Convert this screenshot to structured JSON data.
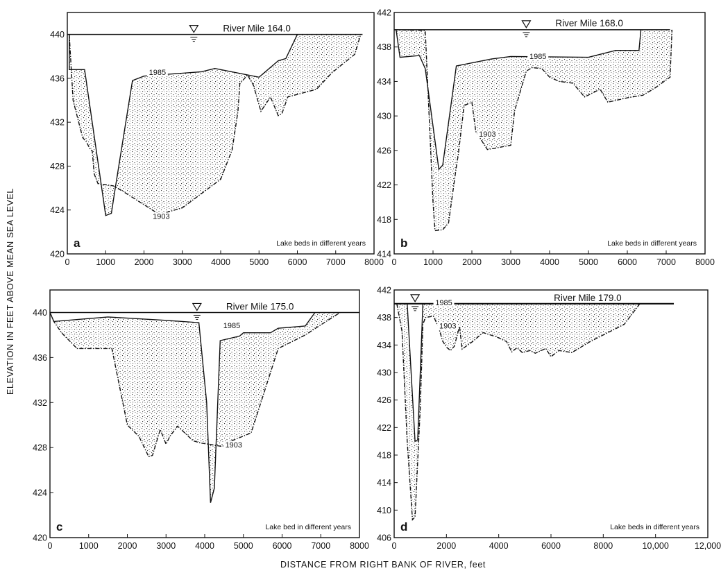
{
  "figure": {
    "y_axis_title": "ELEVATION IN FEET ABOVE MEAN SEA LEVEL",
    "x_axis_title": "DISTANCE FROM RIGHT BANK OF RIVER, feet"
  },
  "chart_data": [
    {
      "type": "area",
      "panel_label": "a",
      "title": "River Mile 164.0",
      "annotation": "Lake beds in different years",
      "xlim": [
        0,
        8000
      ],
      "ylim": [
        420,
        442
      ],
      "xticks": [
        "0",
        "1000",
        "2000",
        "3000",
        "4000",
        "5000",
        "6000",
        "7000",
        "8000"
      ],
      "yticks": [
        "420",
        "424",
        "428",
        "432",
        "436",
        "440"
      ],
      "water_surface": {
        "elevation": 440,
        "x_start": 0,
        "x_end": 7700,
        "symbol_x": 3300
      },
      "series": [
        {
          "name": "1985",
          "label_at": [
            2350,
            436.3
          ],
          "points": [
            [
              50,
              440
            ],
            [
              50,
              436.8
            ],
            [
              450,
              436.8
            ],
            [
              1000,
              423.5
            ],
            [
              1150,
              423.7
            ],
            [
              1250,
              426
            ],
            [
              1700,
              435.8
            ],
            [
              2000,
              436.2
            ],
            [
              3500,
              436.6
            ],
            [
              3850,
              436.9
            ],
            [
              5000,
              436.1
            ],
            [
              5500,
              437.6
            ],
            [
              5700,
              437.8
            ],
            [
              6000,
              440
            ]
          ]
        },
        {
          "name": "1903",
          "label_at": [
            2450,
            423.2
          ],
          "points": [
            [
              50,
              440
            ],
            [
              150,
              434
            ],
            [
              400,
              430.6
            ],
            [
              500,
              430.2
            ],
            [
              600,
              429.5
            ],
            [
              650,
              429.4
            ],
            [
              700,
              427.3
            ],
            [
              800,
              426.4
            ],
            [
              1200,
              426.2
            ],
            [
              1450,
              425.7
            ],
            [
              2400,
              423.6
            ],
            [
              3000,
              424.2
            ],
            [
              4000,
              426.8
            ],
            [
              4300,
              429.5
            ],
            [
              4450,
              433
            ],
            [
              4500,
              435.5
            ],
            [
              4700,
              436.3
            ],
            [
              4850,
              435.4
            ],
            [
              5050,
              433
            ],
            [
              5300,
              434.3
            ],
            [
              5500,
              432.6
            ],
            [
              5600,
              432.8
            ],
            [
              5750,
              434.3
            ],
            [
              6500,
              435
            ],
            [
              6900,
              436.5
            ],
            [
              7500,
              438.2
            ],
            [
              7650,
              440
            ]
          ]
        }
      ]
    },
    {
      "type": "area",
      "panel_label": "b",
      "title": "River Mile 168.0",
      "annotation": "Lake beds in different years",
      "xlim": [
        0,
        8000
      ],
      "ylim": [
        414,
        442
      ],
      "xticks": [
        "0",
        "1000",
        "2000",
        "3000",
        "4000",
        "5000",
        "6000",
        "7000",
        "8000"
      ],
      "yticks": [
        "414",
        "418",
        "422",
        "426",
        "430",
        "434",
        "438",
        "442"
      ],
      "water_surface": {
        "elevation": 440,
        "x_start": 0,
        "x_end": 7100,
        "symbol_x": 3400
      },
      "series": [
        {
          "name": "1985",
          "label_at": [
            3700,
            436.6
          ],
          "points": [
            [
              50,
              440
            ],
            [
              150,
              436.8
            ],
            [
              650,
              437
            ],
            [
              800,
              435.5
            ],
            [
              1150,
              423.8
            ],
            [
              1250,
              424.3
            ],
            [
              1600,
              435.8
            ],
            [
              2500,
              436.6
            ],
            [
              3000,
              436.9
            ],
            [
              5000,
              436.8
            ],
            [
              5700,
              437.6
            ],
            [
              6300,
              437.6
            ],
            [
              6350,
              440
            ]
          ]
        },
        {
          "name": "1903",
          "label_at": [
            2400,
            427.6
          ],
          "points": [
            [
              0,
              440
            ],
            [
              800,
              439.9
            ],
            [
              850,
              435
            ],
            [
              1000,
              420
            ],
            [
              1050,
              416.7
            ],
            [
              1250,
              416.8
            ],
            [
              1400,
              417.6
            ],
            [
              1600,
              424.1
            ],
            [
              1650,
              425.5
            ],
            [
              1800,
              431.2
            ],
            [
              2000,
              431.6
            ],
            [
              2100,
              428.2
            ],
            [
              2400,
              426.1
            ],
            [
              3000,
              426.6
            ],
            [
              3100,
              430.6
            ],
            [
              3400,
              435.2
            ],
            [
              3550,
              435.6
            ],
            [
              3800,
              435.5
            ],
            [
              4000,
              434.5
            ],
            [
              4250,
              434
            ],
            [
              4600,
              433.8
            ],
            [
              4900,
              432.2
            ],
            [
              5300,
              433.1
            ],
            [
              5500,
              431.6
            ],
            [
              6000,
              432.1
            ],
            [
              6400,
              432.4
            ],
            [
              6700,
              433.2
            ],
            [
              7100,
              434.5
            ],
            [
              7150,
              440
            ]
          ]
        }
      ]
    },
    {
      "type": "area",
      "panel_label": "c",
      "title": "River Mile 175.0",
      "annotation": "Lake bed in different years",
      "xlim": [
        0,
        8000
      ],
      "ylim": [
        420,
        442
      ],
      "xticks": [
        "0",
        "1000",
        "2000",
        "3000",
        "4000",
        "5000",
        "6000",
        "7000",
        "8000"
      ],
      "yticks": [
        "420",
        "424",
        "428",
        "432",
        "436",
        "440"
      ],
      "water_surface": {
        "elevation": 440,
        "x_start": 0,
        "x_end": 8000,
        "symbol_x": 3800
      },
      "series": [
        {
          "name": "1985",
          "label_at": [
            4700,
            438.6
          ],
          "points": [
            [
              0,
              440
            ],
            [
              100,
              439.2
            ],
            [
              1500,
              439.6
            ],
            [
              3000,
              439.3
            ],
            [
              3850,
              439.1
            ],
            [
              4050,
              432
            ],
            [
              4150,
              423.1
            ],
            [
              4250,
              424.4
            ],
            [
              4400,
              437.5
            ],
            [
              4900,
              437.9
            ],
            [
              5000,
              438.2
            ],
            [
              5700,
              438.2
            ],
            [
              5900,
              438.6
            ],
            [
              6600,
              438.8
            ],
            [
              6850,
              440
            ]
          ]
        },
        {
          "name": "1903",
          "label_at": [
            4750,
            428.0
          ],
          "points": [
            [
              0,
              440
            ],
            [
              100,
              439.2
            ],
            [
              300,
              438.2
            ],
            [
              700,
              436.8
            ],
            [
              1600,
              436.8
            ],
            [
              2000,
              430
            ],
            [
              2300,
              429
            ],
            [
              2550,
              427.2
            ],
            [
              2650,
              427.3
            ],
            [
              2850,
              429.6
            ],
            [
              3000,
              428.3
            ],
            [
              3100,
              429
            ],
            [
              3300,
              429.9
            ],
            [
              3700,
              428.6
            ],
            [
              3900,
              428.4
            ],
            [
              4100,
              428.3
            ],
            [
              4450,
              428.1
            ],
            [
              4700,
              428.6
            ],
            [
              5200,
              429.3
            ],
            [
              5900,
              436.8
            ],
            [
              6600,
              438
            ],
            [
              7000,
              438.9
            ],
            [
              7500,
              440
            ]
          ]
        }
      ]
    },
    {
      "type": "area",
      "panel_label": "d",
      "title": "River Mile 179.0",
      "annotation": "Lake beds in different years",
      "xlim": [
        0,
        12000
      ],
      "ylim": [
        406,
        442
      ],
      "xticks": [
        "0",
        "2000",
        "4000",
        "6000",
        "8000",
        "10,000",
        "12,000"
      ],
      "yticks": [
        "406",
        "410",
        "414",
        "418",
        "422",
        "426",
        "430",
        "434",
        "438",
        "442"
      ],
      "water_surface": {
        "elevation": 440,
        "x_start": 0,
        "x_end": 10700,
        "symbol_x": 800
      },
      "series": [
        {
          "name": "1985",
          "label_at": [
            1900,
            439.8
          ],
          "points": [
            [
              0,
              440
            ],
            [
              500,
              440
            ],
            [
              800,
              420
            ],
            [
              900,
              420.2
            ],
            [
              1100,
              440
            ],
            [
              10700,
              440
            ]
          ]
        },
        {
          "name": "1903",
          "label_at": [
            2050,
            436.4
          ],
          "points": [
            [
              100,
              440
            ],
            [
              300,
              436
            ],
            [
              500,
              420
            ],
            [
              700,
              408.6
            ],
            [
              800,
              409
            ],
            [
              1000,
              425
            ],
            [
              1100,
              437
            ],
            [
              1200,
              438
            ],
            [
              1500,
              438.2
            ],
            [
              1700,
              436.6
            ],
            [
              1850,
              434.6
            ],
            [
              2000,
              433.7
            ],
            [
              2150,
              433.2
            ],
            [
              2300,
              433.8
            ],
            [
              2500,
              436.7
            ],
            [
              2600,
              433.4
            ],
            [
              3000,
              434.5
            ],
            [
              3400,
              435.8
            ],
            [
              3900,
              435.2
            ],
            [
              4300,
              434.5
            ],
            [
              4500,
              433
            ],
            [
              4700,
              433.6
            ],
            [
              4900,
              432.9
            ],
            [
              5200,
              433.2
            ],
            [
              5400,
              432.8
            ],
            [
              5800,
              433.5
            ],
            [
              6000,
              432.3
            ],
            [
              6300,
              433.2
            ],
            [
              6800,
              432.9
            ],
            [
              7500,
              434.5
            ],
            [
              8800,
              437
            ],
            [
              9400,
              440
            ]
          ]
        }
      ]
    }
  ]
}
